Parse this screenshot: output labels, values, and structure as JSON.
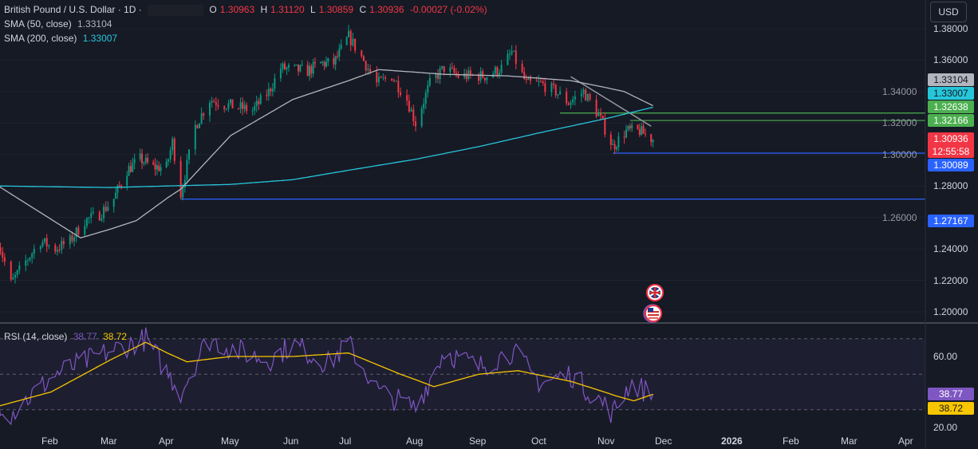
{
  "header": {
    "symbol": "British Pound / U.S. Dollar · 1D ·",
    "open_label": "O",
    "open": "1.30963",
    "high_label": "H",
    "high": "1.31120",
    "low_label": "L",
    "low": "1.30859",
    "close_label": "C",
    "close": "1.30936",
    "change": "-0.00027 (-0.02%)",
    "currency_button": "USD"
  },
  "indicators": {
    "sma50": {
      "label": "SMA (50, close)",
      "value": "1.33104",
      "color": "#b2b5be"
    },
    "sma200": {
      "label": "SMA (200, close)",
      "value": "1.33007",
      "color": "#26c6da"
    },
    "rsi": {
      "label": "RSI (14, close)",
      "value": "38.77",
      "ma_value": "38.72",
      "color": "#7e57c2",
      "ma_color": "#f7c600"
    }
  },
  "price_labels": [
    {
      "text": "1.33104",
      "bg": "#b2b5be",
      "fg": "#131722"
    },
    {
      "text": "1.33007",
      "bg": "#26c6da",
      "fg": "#131722"
    },
    {
      "text": "1.32638",
      "bg": "#4caf50",
      "fg": "#ffffff"
    },
    {
      "text": "1.32166",
      "bg": "#4caf50",
      "fg": "#ffffff"
    },
    {
      "text": "1.30936",
      "bg": "#f23645",
      "fg": "#ffffff"
    },
    {
      "text": "1.30089",
      "bg": "#2962ff",
      "fg": "#ffffff"
    },
    {
      "text": "1.27167",
      "bg": "#2962ff",
      "fg": "#ffffff"
    }
  ],
  "countdown": "12:55:58",
  "rsi_labels": [
    {
      "text": "38.77",
      "bg": "#7e57c2",
      "fg": "#ffffff"
    },
    {
      "text": "38.72",
      "bg": "#f7c600",
      "fg": "#131722"
    }
  ],
  "event_icons": [
    "uk-flag-icon",
    "us-flag-icon"
  ],
  "chart_data": {
    "type": "candlestick",
    "symbol": "GBPUSD",
    "timeframe": "1D",
    "ylim": [
      1.195,
      1.385
    ],
    "y_ticks": [
      "1.38000",
      "1.36000",
      "1.34000",
      "1.32000",
      "1.30000",
      "1.28000",
      "1.26000",
      "1.24000",
      "1.22000",
      "1.20000"
    ],
    "x_ticks": [
      "Feb",
      "Mar",
      "Apr",
      "May",
      "Jun",
      "Jul",
      "Aug",
      "Sep",
      "Oct",
      "Nov",
      "Dec",
      "2026",
      "Feb",
      "Mar",
      "Apr"
    ],
    "close_path": [
      [
        "2025-01-07",
        1.245
      ],
      [
        "2025-01-13",
        1.218
      ],
      [
        "2025-01-20",
        1.232
      ],
      [
        "2025-01-27",
        1.245
      ],
      [
        "2025-02-03",
        1.24
      ],
      [
        "2025-02-10",
        1.245
      ],
      [
        "2025-02-17",
        1.258
      ],
      [
        "2025-02-24",
        1.262
      ],
      [
        "2025-03-03",
        1.272
      ],
      [
        "2025-03-10",
        1.29
      ],
      [
        "2025-03-17",
        1.297
      ],
      [
        "2025-03-24",
        1.292
      ],
      [
        "2025-03-31",
        1.292
      ],
      [
        "2025-04-03",
        1.308
      ],
      [
        "2025-04-07",
        1.275
      ],
      [
        "2025-04-14",
        1.318
      ],
      [
        "2025-04-21",
        1.335
      ],
      [
        "2025-04-28",
        1.332
      ],
      [
        "2025-05-05",
        1.33
      ],
      [
        "2025-05-12",
        1.328
      ],
      [
        "2025-05-20",
        1.34
      ],
      [
        "2025-05-26",
        1.355
      ],
      [
        "2025-06-02",
        1.354
      ],
      [
        "2025-06-09",
        1.353
      ],
      [
        "2025-06-16",
        1.358
      ],
      [
        "2025-06-23",
        1.358
      ],
      [
        "2025-07-01",
        1.375
      ],
      [
        "2025-07-07",
        1.362
      ],
      [
        "2025-07-14",
        1.345
      ],
      [
        "2025-07-21",
        1.35
      ],
      [
        "2025-07-28",
        1.335
      ],
      [
        "2025-08-01",
        1.32
      ],
      [
        "2025-08-08",
        1.345
      ],
      [
        "2025-08-15",
        1.355
      ],
      [
        "2025-08-22",
        1.35
      ],
      [
        "2025-08-29",
        1.35
      ],
      [
        "2025-09-05",
        1.35
      ],
      [
        "2025-09-12",
        1.355
      ],
      [
        "2025-09-17",
        1.365
      ],
      [
        "2025-09-24",
        1.345
      ],
      [
        "2025-10-01",
        1.345
      ],
      [
        "2025-10-08",
        1.34
      ],
      [
        "2025-10-14",
        1.333
      ],
      [
        "2025-10-21",
        1.34
      ],
      [
        "2025-10-28",
        1.325
      ],
      [
        "2025-11-04",
        1.305
      ],
      [
        "2025-11-11",
        1.315
      ],
      [
        "2025-11-18",
        1.315
      ],
      [
        "2025-11-25",
        1.30936
      ]
    ],
    "sma50_path": [
      [
        "2025-01-07",
        1.28
      ],
      [
        "2025-02-15",
        1.247
      ],
      [
        "2025-03-15",
        1.258
      ],
      [
        "2025-04-07",
        1.278
      ],
      [
        "2025-05-01",
        1.312
      ],
      [
        "2025-06-01",
        1.335
      ],
      [
        "2025-07-01",
        1.347
      ],
      [
        "2025-07-15",
        1.354
      ],
      [
        "2025-08-15",
        1.351
      ],
      [
        "2025-09-15",
        1.35
      ],
      [
        "2025-10-15",
        1.347
      ],
      [
        "2025-11-10",
        1.34
      ],
      [
        "2025-11-25",
        1.33104
      ]
    ],
    "sma200_path": [
      [
        "2025-01-07",
        1.28
      ],
      [
        "2025-03-01",
        1.279
      ],
      [
        "2025-05-01",
        1.281
      ],
      [
        "2025-06-01",
        1.284
      ],
      [
        "2025-07-01",
        1.29
      ],
      [
        "2025-08-01",
        1.297
      ],
      [
        "2025-09-01",
        1.305
      ],
      [
        "2025-10-01",
        1.314
      ],
      [
        "2025-11-01",
        1.323
      ],
      [
        "2025-11-25",
        1.33007
      ]
    ],
    "horizontal_levels": [
      {
        "price": 1.32638,
        "from": "2025-10-10",
        "color": "#4caf50"
      },
      {
        "price": 1.32166,
        "from": "2025-11-13",
        "color": "#4caf50"
      },
      {
        "price": 1.30089,
        "from": "2025-11-04",
        "color": "#2962ff"
      },
      {
        "price": 1.27167,
        "from": "2025-04-07",
        "color": "#2962ff"
      }
    ],
    "trendline": {
      "from": [
        "2025-10-15",
        1.3495
      ],
      "to": [
        "2025-11-24",
        1.318
      ],
      "color": "#9598a1"
    },
    "rsi": {
      "ylim": [
        15,
        80
      ],
      "levels": [
        70,
        50,
        30
      ],
      "y_ticks": [
        "60.00",
        "20.00"
      ],
      "path": [
        [
          "2025-01-07",
          35
        ],
        [
          "2025-01-13",
          28
        ],
        [
          "2025-02-03",
          50
        ],
        [
          "2025-03-01",
          63
        ],
        [
          "2025-03-20",
          70
        ],
        [
          "2025-04-07",
          40
        ],
        [
          "2025-04-20",
          70
        ],
        [
          "2025-05-05",
          63
        ],
        [
          "2025-05-20",
          58
        ],
        [
          "2025-06-01",
          67
        ],
        [
          "2025-06-20",
          56
        ],
        [
          "2025-07-01",
          67
        ],
        [
          "2025-07-15",
          40
        ],
        [
          "2025-08-01",
          31
        ],
        [
          "2025-08-15",
          63
        ],
        [
          "2025-09-01",
          54
        ],
        [
          "2025-09-17",
          63
        ],
        [
          "2025-10-01",
          45
        ],
        [
          "2025-10-15",
          50
        ],
        [
          "2025-11-04",
          28
        ],
        [
          "2025-11-13",
          45
        ],
        [
          "2025-11-25",
          38.77
        ]
      ],
      "ma_path": [
        [
          "2025-01-07",
          32
        ],
        [
          "2025-02-01",
          40
        ],
        [
          "2025-03-01",
          58
        ],
        [
          "2025-03-20",
          68
        ],
        [
          "2025-04-10",
          57
        ],
        [
          "2025-05-01",
          60
        ],
        [
          "2025-06-01",
          60
        ],
        [
          "2025-07-01",
          62
        ],
        [
          "2025-07-25",
          50
        ],
        [
          "2025-08-10",
          43
        ],
        [
          "2025-09-01",
          50
        ],
        [
          "2025-09-20",
          52
        ],
        [
          "2025-10-15",
          46
        ],
        [
          "2025-11-05",
          38
        ],
        [
          "2025-11-15",
          35
        ],
        [
          "2025-11-25",
          38.72
        ]
      ]
    }
  }
}
